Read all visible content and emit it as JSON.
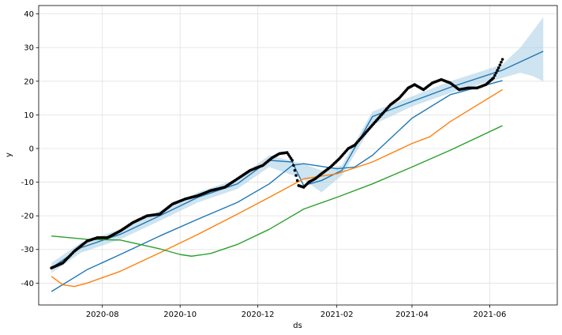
{
  "chart_data": {
    "type": "line",
    "title": "",
    "xlabel": "ds",
    "ylabel": "y",
    "ylim": [
      -46.5,
      42.5
    ],
    "xlim": [
      "2020-06-12",
      "2021-07-24"
    ],
    "grid": true,
    "legend": "none",
    "x_ticks": [
      {
        "date": "2020-08-01",
        "label": "2020-08"
      },
      {
        "date": "2020-10-01",
        "label": "2020-10"
      },
      {
        "date": "2020-12-01",
        "label": "2020-12"
      },
      {
        "date": "2021-02-01",
        "label": "2021-02"
      },
      {
        "date": "2021-04-01",
        "label": "2021-04"
      },
      {
        "date": "2021-06-01",
        "label": "2021-06"
      }
    ],
    "y_ticks": [
      -40,
      -30,
      -20,
      -10,
      0,
      10,
      20,
      30,
      40
    ],
    "colors": {
      "forecast": "#1f77b4",
      "band": "#a6cee3",
      "points": "#000000",
      "trend_blue": "#1f77b4",
      "trend_orange": "#ff7f0e",
      "trend_green": "#2ca02c"
    },
    "series": [
      {
        "kind": "band",
        "x": [
          "2020-06-22",
          "2020-07-15",
          "2020-08-15",
          "2020-09-15",
          "2020-10-15",
          "2020-11-15",
          "2020-12-10",
          "2021-01-05",
          "2021-01-20",
          "2021-02-05",
          "2021-03-01",
          "2021-04-01",
          "2021-05-01",
          "2021-06-11",
          "2021-06-25",
          "2021-07-05",
          "2021-07-13"
        ],
        "upper": [
          -34,
          -28,
          -24,
          -18.5,
          -13,
          -9,
          -2,
          -4.5,
          -6.5,
          -5,
          11,
          15.5,
          20,
          25,
          30,
          35,
          39
        ],
        "lower": [
          -37,
          -31,
          -27,
          -21.5,
          -16,
          -12,
          -5.5,
          -9,
          -13,
          -8,
          7,
          12.5,
          16.5,
          21,
          22.5,
          21.5,
          20
        ]
      },
      {
        "kind": "line",
        "x": [
          "2020-06-22",
          "2020-07-15",
          "2020-08-15",
          "2020-09-15",
          "2020-10-15",
          "2020-11-15",
          "2020-12-10",
          "2020-12-28",
          "2021-01-06",
          "2021-01-20",
          "2021-02-05",
          "2021-03-01",
          "2021-04-01",
          "2021-05-01",
          "2021-06-11",
          "2021-07-13"
        ],
        "y": [
          -35.5,
          -29.5,
          -25.5,
          -20,
          -14.5,
          -10.5,
          -3.5,
          -4,
          -11,
          -9.5,
          -6.5,
          9.5,
          14,
          18.2,
          23.3,
          28.9
        ]
      },
      {
        "kind": "points",
        "x": [
          "2020-06-22",
          "2020-07-01",
          "2020-07-10",
          "2020-07-20",
          "2020-07-28",
          "2020-08-05",
          "2020-08-15",
          "2020-08-25",
          "2020-09-05",
          "2020-09-15",
          "2020-09-25",
          "2020-10-05",
          "2020-10-15",
          "2020-10-25",
          "2020-11-05",
          "2020-11-15",
          "2020-11-25",
          "2020-12-05",
          "2020-12-12",
          "2020-12-18",
          "2020-12-24",
          "2020-12-28",
          "2021-01-02",
          "2021-01-06",
          "2021-01-10",
          "2021-01-15",
          "2021-01-20",
          "2021-01-27",
          "2021-02-03",
          "2021-02-10",
          "2021-02-15",
          "2021-02-22",
          "2021-03-01",
          "2021-03-08",
          "2021-03-15",
          "2021-03-22",
          "2021-03-29",
          "2021-04-03",
          "2021-04-10",
          "2021-04-17",
          "2021-04-24",
          "2021-05-01",
          "2021-05-08",
          "2021-05-15",
          "2021-05-22",
          "2021-05-29",
          "2021-06-04",
          "2021-06-08",
          "2021-06-11"
        ],
        "y": [
          -35.5,
          -34,
          -30.5,
          -27.5,
          -26.5,
          -26.5,
          -24.5,
          -22,
          -20,
          -19.5,
          -16.5,
          -15,
          -14,
          -12.5,
          -11.5,
          -9,
          -6.5,
          -5,
          -2.8,
          -1.5,
          -1.2,
          -3.5,
          -11,
          -11.5,
          -10,
          -9,
          -7.5,
          -5.5,
          -3,
          0,
          1,
          4,
          7,
          10,
          13,
          15,
          18,
          19,
          17.5,
          19.5,
          20.5,
          19.5,
          17.5,
          18,
          18,
          19,
          21,
          24,
          26.5
        ]
      },
      {
        "kind": "line",
        "x": [
          "2020-06-22",
          "2020-07-20",
          "2020-08-15",
          "2020-09-15",
          "2020-10-15",
          "2020-11-15",
          "2020-12-10",
          "2020-12-28",
          "2021-01-06",
          "2021-02-01",
          "2021-02-15",
          "2021-03-01",
          "2021-04-01",
          "2021-05-01",
          "2021-06-11"
        ],
        "y": [
          -42.5,
          -36,
          -31.5,
          -26,
          -21,
          -16,
          -10.5,
          -5,
          -4.5,
          -6,
          -5.5,
          -2,
          9,
          16,
          20.2
        ]
      },
      {
        "kind": "line",
        "x": [
          "2020-06-22",
          "2020-07-01",
          "2020-07-10",
          "2020-07-20",
          "2020-08-15",
          "2020-09-15",
          "2020-10-15",
          "2020-11-15",
          "2020-12-10",
          "2021-01-06",
          "2021-02-01",
          "2021-03-01",
          "2021-04-01",
          "2021-04-15",
          "2021-05-01",
          "2021-06-11"
        ],
        "y": [
          -38,
          -40.5,
          -41,
          -40,
          -36.5,
          -31,
          -25.5,
          -19.5,
          -14.5,
          -9,
          -7.5,
          -4,
          1.5,
          3.5,
          8,
          17.5
        ]
      },
      {
        "kind": "line",
        "x": [
          "2020-06-22",
          "2020-07-20",
          "2020-08-15",
          "2020-09-15",
          "2020-10-01",
          "2020-10-10",
          "2020-10-25",
          "2020-11-15",
          "2020-12-10",
          "2021-01-06",
          "2021-02-01",
          "2021-03-01",
          "2021-04-01",
          "2021-05-01",
          "2021-06-11"
        ],
        "y": [
          -26,
          -27,
          -27.2,
          -29.8,
          -31.5,
          -32,
          -31.2,
          -28.5,
          -24,
          -18,
          -14.5,
          -10.5,
          -5.5,
          -0.5,
          6.8
        ]
      }
    ]
  }
}
